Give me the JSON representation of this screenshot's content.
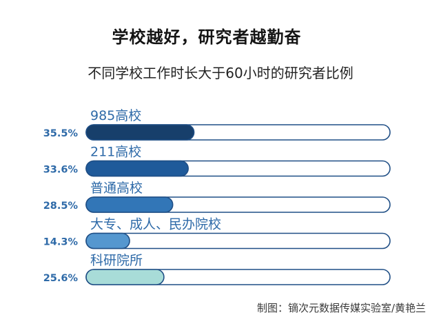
{
  "header": {
    "title": "学校越好，研究者越勤奋",
    "subtitle": "不同学校工作时长大于60小时的研究者比例"
  },
  "chart_data": {
    "type": "bar",
    "orientation": "horizontal",
    "title": "学校越好，研究者越勤奋",
    "subtitle": "不同学校工作时长大于60小时的研究者比例",
    "categories": [
      "985高校",
      "211高校",
      "普通高校",
      "大专、成人、民办院校",
      "科研院所"
    ],
    "values": [
      35.5,
      33.6,
      28.5,
      14.3,
      25.6
    ],
    "value_labels": [
      "35.5%",
      "33.6%",
      "28.5%",
      "14.3%",
      "25.6%"
    ],
    "unit": "%",
    "xlim": [
      0,
      100
    ],
    "bar_colors": [
      "#173f6b",
      "#1f5a9a",
      "#3276b7",
      "#5597cf",
      "#a8dcd8"
    ],
    "track_color": "#ffffff",
    "outline_color": "#1f4e85",
    "label_color": "#2e6aa8"
  },
  "credit": "制图：镝次元数据传媒实验室/黄艳兰"
}
